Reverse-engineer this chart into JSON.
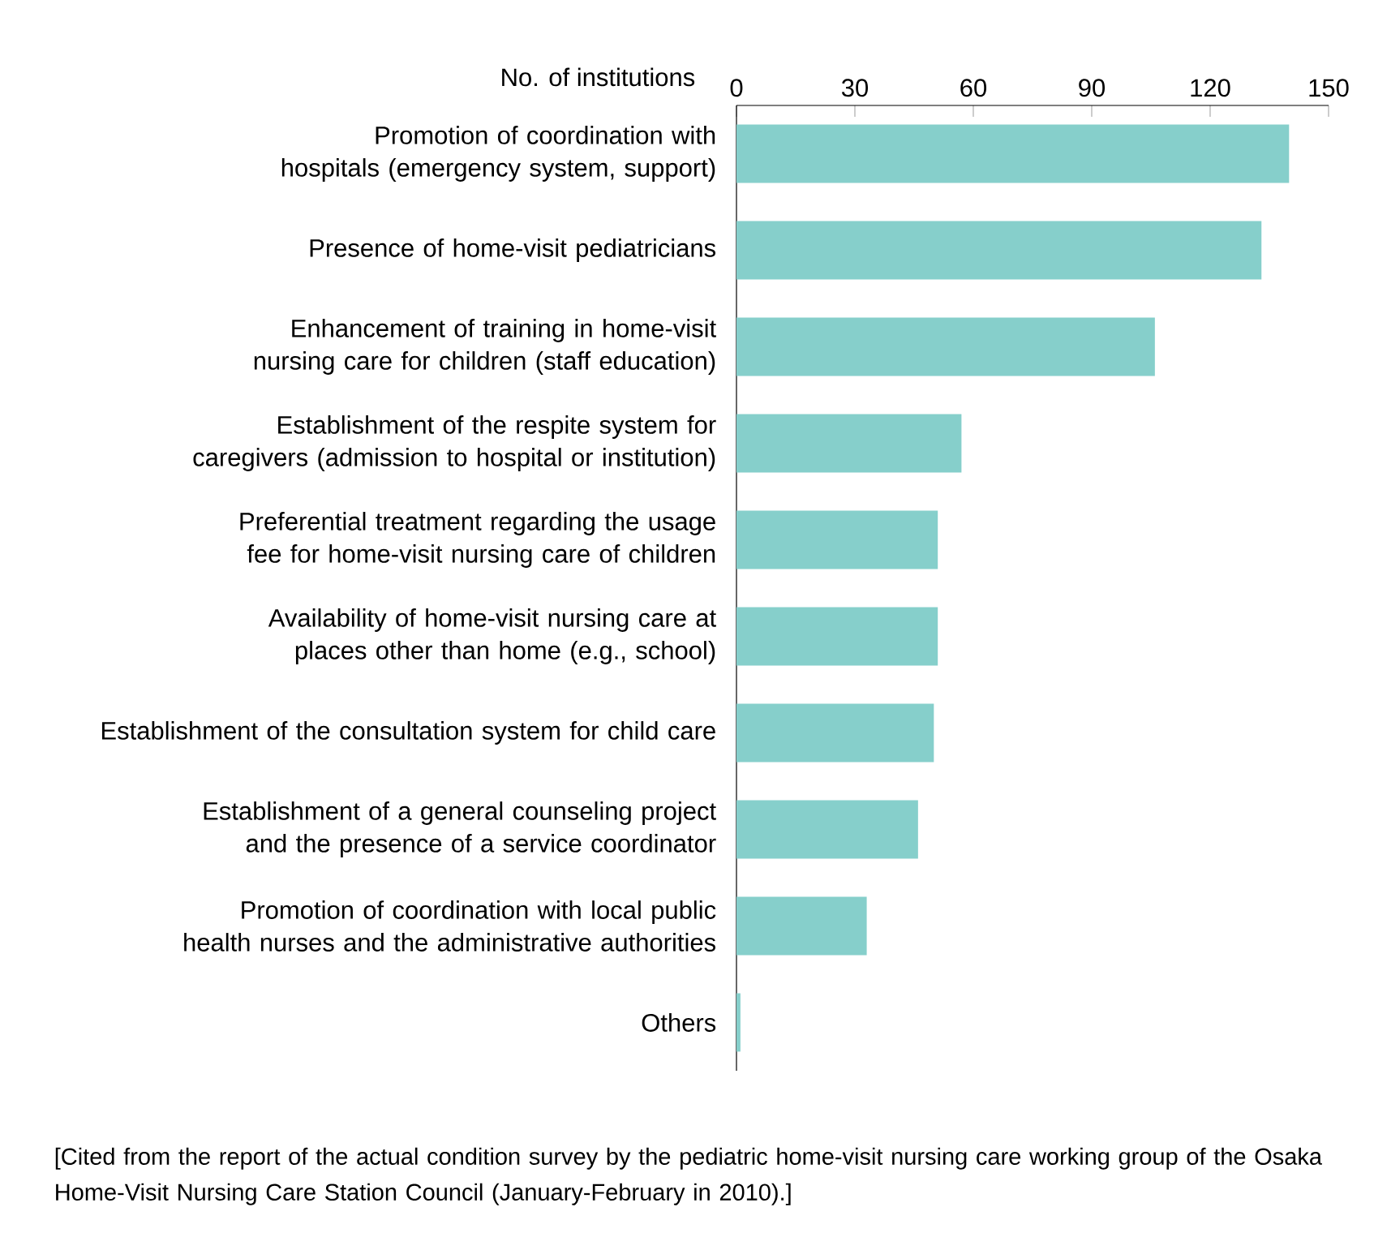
{
  "chart_data": {
    "type": "bar",
    "orientation": "horizontal",
    "xlabel": "No. of institutions",
    "categories": [
      "Promotion of coordination with hospitals (emergency system, support)",
      "Presence of home-visit pediatricians",
      "Enhancement of training in home-visit nursing care for children (staff education)",
      "Establishment of the respite system for caregivers (admission to hospital or institution)",
      "Preferential treatment regarding the usage fee for home-visit nursing care of children",
      "Availability of home-visit nursing care at places other than home (e.g., school)",
      "Establishment of the consultation system for child care",
      "Establishment of a general counseling project and the presence of a service coordinator",
      "Promotion of coordination with local public health nurses and the administrative authorities",
      "Others"
    ],
    "values": [
      140,
      133,
      106,
      57,
      51,
      51,
      50,
      46,
      33,
      1
    ],
    "color": "#86cfcb",
    "xlim": [
      0,
      150
    ],
    "xticks": [
      0,
      30,
      60,
      90,
      120,
      150
    ],
    "annotations": [
      "[Cited from the report of the actual condition survey by the pediatric home-visit nursing care working group of the Osaka Home-Visit Nursing Care Station Council (January-February in 2010).]"
    ]
  }
}
